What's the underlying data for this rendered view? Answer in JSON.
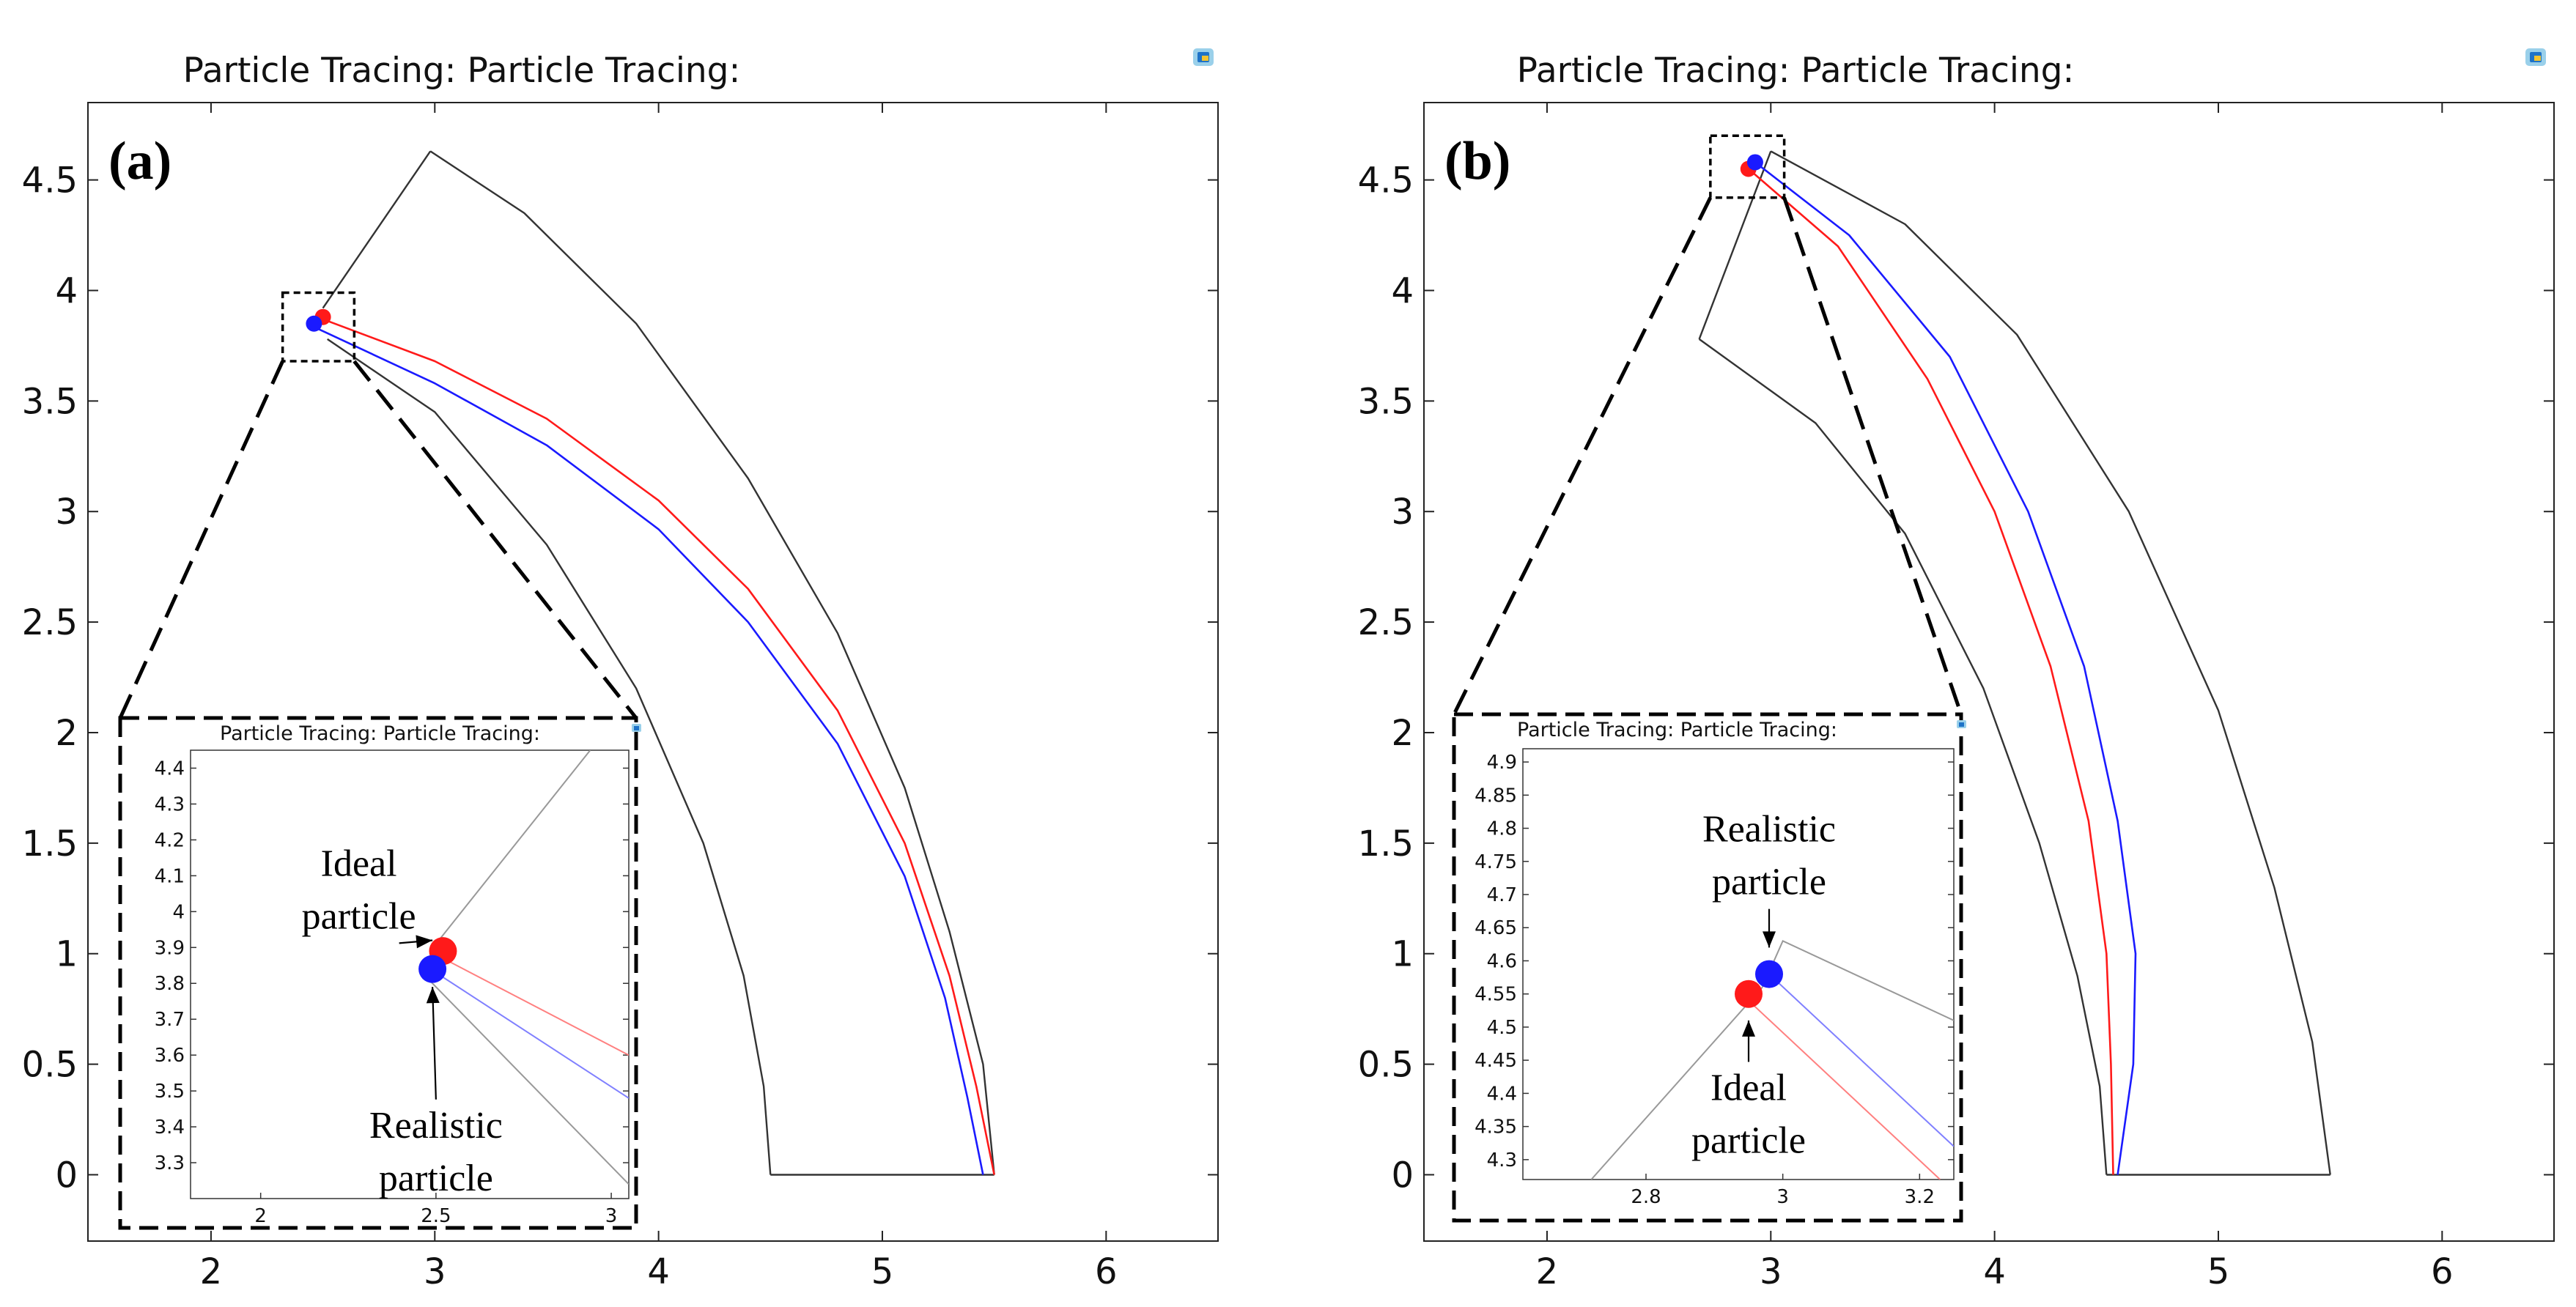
{
  "figure": {
    "colors": {
      "ideal": "#ff1a1a",
      "realistic": "#1a1aff",
      "boundary": "#333333",
      "frame": "#222222"
    },
    "icon": "comsol-logo-icon"
  },
  "chart_data": [
    {
      "type": "line",
      "panel_label": "(a)",
      "title": "Particle Tracing:   Particle Tracing:",
      "xlim": [
        1.45,
        6.5
      ],
      "ylim": [
        -0.3,
        4.85
      ],
      "xticks": [
        "2",
        "3",
        "4",
        "5",
        "6"
      ],
      "yticks": [
        "0",
        "0.5",
        "1",
        "1.5",
        "2",
        "2.5",
        "3",
        "3.5",
        "4",
        "4.5"
      ],
      "geometry": {
        "outer_wall": {
          "x": [
            2.98,
            3.4,
            3.9,
            4.4,
            4.8,
            5.1,
            5.3,
            5.45,
            5.5
          ],
          "y": [
            4.63,
            4.35,
            3.85,
            3.15,
            2.45,
            1.75,
            1.1,
            0.5,
            0.0
          ]
        },
        "inner_wall": {
          "x": [
            2.52,
            3.0,
            3.5,
            3.9,
            4.2,
            4.38,
            4.47,
            4.5
          ],
          "y": [
            3.78,
            3.45,
            2.85,
            2.2,
            1.5,
            0.9,
            0.4,
            0.0
          ]
        },
        "inlet": {
          "x": [
            2.5,
            2.98
          ],
          "y": [
            3.92,
            4.63
          ]
        },
        "outlet": {
          "x": [
            4.5,
            5.5
          ],
          "y": [
            0.0,
            0.0
          ]
        }
      },
      "series": [
        {
          "name": "Ideal particle",
          "color": "#ff1a1a",
          "x": [
            2.5,
            3.0,
            3.5,
            4.0,
            4.4,
            4.8,
            5.1,
            5.3,
            5.42,
            5.5
          ],
          "y": [
            3.87,
            3.68,
            3.42,
            3.05,
            2.65,
            2.1,
            1.5,
            0.9,
            0.4,
            0.0
          ]
        },
        {
          "name": "Realistic particle",
          "color": "#1a1aff",
          "x": [
            2.45,
            3.0,
            3.5,
            4.0,
            4.4,
            4.8,
            5.1,
            5.28,
            5.38,
            5.45
          ],
          "y": [
            3.84,
            3.58,
            3.3,
            2.92,
            2.5,
            1.95,
            1.35,
            0.8,
            0.35,
            0.0
          ]
        }
      ],
      "markers": [
        {
          "name": "Ideal particle",
          "x": 2.5,
          "y": 3.88,
          "color": "#ff1a1a"
        },
        {
          "name": "Realistic particle",
          "x": 2.46,
          "y": 3.85,
          "color": "#1a1aff"
        }
      ],
      "zoom_box": {
        "x": [
          2.32,
          2.64
        ],
        "y": [
          3.68,
          3.99
        ]
      },
      "inset": {
        "title": "Particle Tracing:   Particle Tracing:",
        "xlim": [
          1.8,
          3.05
        ],
        "ylim": [
          3.2,
          4.45
        ],
        "xticks": [
          "2",
          "2.5",
          "3"
        ],
        "yticks": [
          "3.3",
          "3.4",
          "3.5",
          "3.6",
          "3.7",
          "3.8",
          "3.9",
          "4",
          "4.1",
          "4.2",
          "4.3",
          "4.4"
        ],
        "lines": [
          {
            "name": "inlet-wall",
            "color": "#999999",
            "x": [
              2.5,
              2.94
            ],
            "y": [
              3.91,
              4.45
            ]
          },
          {
            "name": "inner-wall",
            "color": "#999999",
            "x": [
              2.47,
              3.05
            ],
            "y": [
              3.82,
              3.24
            ]
          },
          {
            "name": "ideal-path",
            "color": "#ff8080",
            "x": [
              2.52,
              3.05
            ],
            "y": [
              3.87,
              3.6
            ]
          },
          {
            "name": "realistic-path",
            "color": "#8080ff",
            "x": [
              2.5,
              3.05
            ],
            "y": [
              3.83,
              3.48
            ]
          }
        ],
        "markers": [
          {
            "name": "Ideal particle",
            "x": 2.52,
            "y": 3.89,
            "color": "#ff1a1a"
          },
          {
            "name": "Realistic particle",
            "x": 2.49,
            "y": 3.84,
            "color": "#1a1aff"
          }
        ],
        "annotations": [
          {
            "name": "ideal-label",
            "lines": [
              "Ideal",
              "particle"
            ],
            "x": 2.28,
            "y": 4.1,
            "arrow_to": [
              2.49,
              3.92
            ]
          },
          {
            "name": "realistic-label",
            "lines": [
              "Realistic",
              "particle"
            ],
            "x": 2.5,
            "y": 3.37,
            "arrow_to": [
              2.49,
              3.79
            ]
          }
        ]
      }
    },
    {
      "type": "line",
      "panel_label": "(b)",
      "title": "Particle Tracing:   Particle Tracing:",
      "xlim": [
        1.45,
        6.5
      ],
      "ylim": [
        -0.3,
        4.85
      ],
      "xticks": [
        "2",
        "3",
        "4",
        "5",
        "6"
      ],
      "yticks": [
        "0",
        "0.5",
        "1",
        "1.5",
        "2",
        "2.5",
        "3",
        "3.5",
        "4",
        "4.5"
      ],
      "geometry": {
        "outer_wall": {
          "x": [
            3.0,
            3.6,
            4.1,
            4.6,
            5.0,
            5.25,
            5.42,
            5.5
          ],
          "y": [
            4.63,
            4.3,
            3.8,
            3.0,
            2.1,
            1.3,
            0.6,
            0.0
          ]
        },
        "inner_wall": {
          "x": [
            2.68,
            3.2,
            3.6,
            3.95,
            4.2,
            4.37,
            4.47,
            4.5
          ],
          "y": [
            3.78,
            3.4,
            2.9,
            2.2,
            1.5,
            0.9,
            0.4,
            0.0
          ]
        },
        "inlet": {
          "x": [
            2.68,
            3.0
          ],
          "y": [
            3.78,
            4.63
          ]
        },
        "outlet": {
          "x": [
            4.5,
            5.5
          ],
          "y": [
            0.0,
            0.0
          ]
        }
      },
      "series": [
        {
          "name": "Ideal particle",
          "color": "#ff1a1a",
          "x": [
            2.9,
            3.3,
            3.7,
            4.0,
            4.25,
            4.42,
            4.5,
            4.52,
            4.53
          ],
          "y": [
            4.55,
            4.2,
            3.6,
            3.0,
            2.3,
            1.6,
            1.0,
            0.5,
            0.0
          ]
        },
        {
          "name": "Realistic particle",
          "color": "#1a1aff",
          "x": [
            2.93,
            3.35,
            3.8,
            4.15,
            4.4,
            4.55,
            4.63,
            4.62,
            4.55
          ],
          "y": [
            4.58,
            4.25,
            3.7,
            3.0,
            2.3,
            1.6,
            1.0,
            0.5,
            0.0
          ]
        }
      ],
      "markers": [
        {
          "name": "Ideal particle",
          "x": 2.9,
          "y": 4.55,
          "color": "#ff1a1a"
        },
        {
          "name": "Realistic particle",
          "x": 2.93,
          "y": 4.58,
          "color": "#1a1aff"
        }
      ],
      "zoom_box": {
        "x": [
          2.73,
          3.06
        ],
        "y": [
          4.42,
          4.7
        ]
      },
      "inset": {
        "title": "Particle Tracing:   Particle Tracing:",
        "xlim": [
          2.62,
          3.25
        ],
        "ylim": [
          4.27,
          4.92
        ],
        "xticks": [
          "2.8",
          "3",
          "3.2"
        ],
        "yticks": [
          "4.3",
          "4.35",
          "4.4",
          "4.45",
          "4.5",
          "4.55",
          "4.6",
          "4.65",
          "4.7",
          "4.75",
          "4.8",
          "4.85",
          "4.9"
        ],
        "lines": [
          {
            "name": "inlet-wall",
            "color": "#999999",
            "x": [
              2.72,
              2.97
            ],
            "y": [
              4.27,
              4.56
            ]
          },
          {
            "name": "outer-wall",
            "color": "#999999",
            "x": [
              2.97,
              3.0,
              3.25
            ],
            "y": [
              4.56,
              4.63,
              4.51
            ]
          },
          {
            "name": "ideal-path",
            "color": "#ff8080",
            "x": [
              2.95,
              3.23
            ],
            "y": [
              4.54,
              4.27
            ]
          },
          {
            "name": "realistic-path",
            "color": "#8080ff",
            "x": [
              2.98,
              3.25
            ],
            "y": [
              4.58,
              4.32
            ]
          }
        ],
        "markers": [
          {
            "name": "Ideal particle",
            "x": 2.95,
            "y": 4.55,
            "color": "#ff1a1a"
          },
          {
            "name": "Realistic particle",
            "x": 2.98,
            "y": 4.58,
            "color": "#1a1aff"
          }
        ],
        "annotations": [
          {
            "name": "realistic-label",
            "lines": [
              "Realistic",
              "particle"
            ],
            "x": 2.98,
            "y": 4.78,
            "arrow_to": [
              2.98,
              4.62
            ]
          },
          {
            "name": "ideal-label",
            "lines": [
              "Ideal",
              "particle"
            ],
            "x": 2.95,
            "y": 4.39,
            "arrow_to": [
              2.95,
              4.51
            ]
          }
        ]
      }
    }
  ]
}
